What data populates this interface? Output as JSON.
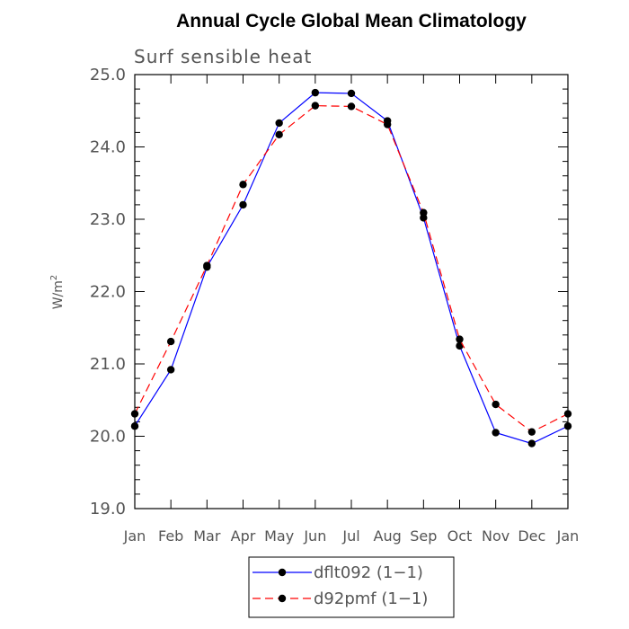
{
  "chart_data": {
    "type": "line",
    "title": "Annual Cycle Global Mean Climatology",
    "subtitle": "Surf sensible heat",
    "ylabel": "W/m",
    "ylabel_superscript": "2",
    "ylim": [
      19.0,
      25.0
    ],
    "y_ticks": [
      "19.0",
      "20.0",
      "21.0",
      "22.0",
      "23.0",
      "24.0",
      "25.0"
    ],
    "categories": [
      "Jan",
      "Feb",
      "Mar",
      "Apr",
      "May",
      "Jun",
      "Jul",
      "Aug",
      "Sep",
      "Oct",
      "Nov",
      "Dec",
      "Jan"
    ],
    "series": [
      {
        "name": "dflt092 (1−1)",
        "color": "#0000ff",
        "dashed": false,
        "values": [
          20.14,
          20.92,
          22.34,
          23.2,
          24.33,
          24.75,
          24.74,
          24.36,
          23.02,
          21.25,
          20.05,
          19.9,
          20.14
        ]
      },
      {
        "name": "d92pmf (1−1)",
        "color": "#ff0000",
        "dashed": true,
        "values": [
          20.31,
          21.31,
          22.36,
          23.48,
          24.17,
          24.57,
          24.56,
          24.31,
          23.09,
          21.34,
          20.44,
          20.06,
          20.31
        ]
      }
    ],
    "grid": false,
    "legend_position": "bottom-center"
  }
}
